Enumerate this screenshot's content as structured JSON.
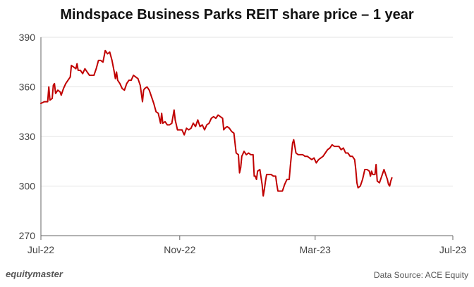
{
  "chart_data": {
    "type": "line",
    "title": "Mindspace Business Parks REIT share price – 1 year",
    "xlabel": "",
    "ylabel": "",
    "ylim": [
      270,
      390
    ],
    "yticks": [
      270,
      300,
      330,
      360,
      390
    ],
    "xlim": [
      0,
      365
    ],
    "xticks": [
      {
        "x": 0,
        "label": "Jul-22"
      },
      {
        "x": 123,
        "label": "Nov-22"
      },
      {
        "x": 243,
        "label": "Mar-23"
      },
      {
        "x": 365,
        "label": "Jul-23"
      }
    ],
    "grid": "horizontal",
    "series": [
      {
        "name": "Share price",
        "color": "#c00000",
        "points": [
          [
            0,
            350
          ],
          [
            3,
            351
          ],
          [
            6,
            351
          ],
          [
            7,
            360
          ],
          [
            8,
            352
          ],
          [
            10,
            353
          ],
          [
            11,
            361
          ],
          [
            12,
            362
          ],
          [
            13,
            356
          ],
          [
            15,
            358
          ],
          [
            17,
            357
          ],
          [
            18,
            355
          ],
          [
            20,
            359
          ],
          [
            22,
            362
          ],
          [
            24,
            364
          ],
          [
            26,
            366
          ],
          [
            27,
            373
          ],
          [
            29,
            372
          ],
          [
            31,
            371
          ],
          [
            32,
            374
          ],
          [
            33,
            370
          ],
          [
            35,
            370
          ],
          [
            37,
            368
          ],
          [
            39,
            371
          ],
          [
            41,
            369
          ],
          [
            43,
            367
          ],
          [
            45,
            367
          ],
          [
            47,
            367
          ],
          [
            49,
            371
          ],
          [
            51,
            376
          ],
          [
            53,
            376
          ],
          [
            55,
            375
          ],
          [
            57,
            382
          ],
          [
            59,
            380
          ],
          [
            61,
            381
          ],
          [
            63,
            376
          ],
          [
            65,
            369
          ],
          [
            66,
            365
          ],
          [
            67,
            369
          ],
          [
            68,
            364
          ],
          [
            70,
            362
          ],
          [
            72,
            359
          ],
          [
            74,
            358
          ],
          [
            76,
            362
          ],
          [
            78,
            364
          ],
          [
            80,
            364
          ],
          [
            82,
            367
          ],
          [
            84,
            366
          ],
          [
            86,
            365
          ],
          [
            88,
            361
          ],
          [
            90,
            351
          ],
          [
            91,
            358
          ],
          [
            92,
            359
          ],
          [
            94,
            360
          ],
          [
            96,
            358
          ],
          [
            98,
            354
          ],
          [
            100,
            350
          ],
          [
            102,
            345
          ],
          [
            104,
            344
          ],
          [
            106,
            338
          ],
          [
            107,
            344
          ],
          [
            108,
            338
          ],
          [
            110,
            339
          ],
          [
            112,
            337
          ],
          [
            114,
            337
          ],
          [
            116,
            338
          ],
          [
            118,
            346
          ],
          [
            119,
            340
          ],
          [
            120,
            337
          ],
          [
            121,
            334
          ],
          [
            123,
            334
          ],
          [
            125,
            334
          ],
          [
            127,
            331
          ],
          [
            129,
            335
          ],
          [
            131,
            334
          ],
          [
            133,
            335
          ],
          [
            135,
            338
          ],
          [
            137,
            336
          ],
          [
            139,
            340
          ],
          [
            141,
            336
          ],
          [
            143,
            337
          ],
          [
            145,
            334
          ],
          [
            147,
            337
          ],
          [
            149,
            338
          ],
          [
            151,
            341
          ],
          [
            153,
            342
          ],
          [
            155,
            341
          ],
          [
            157,
            343
          ],
          [
            159,
            342
          ],
          [
            161,
            341
          ],
          [
            162,
            334
          ],
          [
            163,
            335
          ],
          [
            165,
            336
          ],
          [
            167,
            335
          ],
          [
            169,
            333
          ],
          [
            171,
            332
          ],
          [
            172,
            326
          ],
          [
            173,
            320
          ],
          [
            175,
            319
          ],
          [
            176,
            308
          ],
          [
            177,
            311
          ],
          [
            178,
            318
          ],
          [
            180,
            321
          ],
          [
            182,
            319
          ],
          [
            184,
            320
          ],
          [
            186,
            319
          ],
          [
            188,
            319
          ],
          [
            189,
            306
          ],
          [
            190,
            306
          ],
          [
            191,
            304
          ],
          [
            192,
            309
          ],
          [
            194,
            310
          ],
          [
            196,
            301
          ],
          [
            197,
            294
          ],
          [
            198,
            298
          ],
          [
            199,
            303
          ],
          [
            200,
            307
          ],
          [
            202,
            307
          ],
          [
            204,
            307
          ],
          [
            206,
            306
          ],
          [
            208,
            306
          ],
          [
            209,
            301
          ],
          [
            210,
            297
          ],
          [
            212,
            297
          ],
          [
            214,
            297
          ],
          [
            216,
            301
          ],
          [
            218,
            304
          ],
          [
            220,
            304
          ],
          [
            221,
            312
          ],
          [
            223,
            326
          ],
          [
            224,
            328
          ],
          [
            226,
            320
          ],
          [
            228,
            319
          ],
          [
            230,
            319
          ],
          [
            232,
            319
          ],
          [
            234,
            318
          ],
          [
            236,
            318
          ],
          [
            238,
            317
          ],
          [
            240,
            316
          ],
          [
            242,
            317
          ],
          [
            244,
            314
          ],
          [
            246,
            316
          ],
          [
            248,
            317
          ],
          [
            250,
            318
          ],
          [
            252,
            320
          ],
          [
            254,
            322
          ],
          [
            256,
            323
          ],
          [
            258,
            325
          ],
          [
            260,
            324
          ],
          [
            262,
            324
          ],
          [
            264,
            324
          ],
          [
            266,
            322
          ],
          [
            268,
            323
          ],
          [
            270,
            320
          ],
          [
            272,
            320
          ],
          [
            274,
            318
          ],
          [
            276,
            318
          ],
          [
            278,
            316
          ],
          [
            279,
            310
          ],
          [
            280,
            302
          ],
          [
            281,
            299
          ],
          [
            283,
            300
          ],
          [
            285,
            304
          ],
          [
            287,
            310
          ],
          [
            289,
            310
          ],
          [
            291,
            309
          ],
          [
            292,
            306
          ],
          [
            293,
            309
          ],
          [
            294,
            307
          ],
          [
            296,
            307
          ],
          [
            297,
            313
          ],
          [
            298,
            303
          ],
          [
            300,
            302
          ],
          [
            302,
            306
          ],
          [
            304,
            310
          ],
          [
            306,
            306
          ],
          [
            307,
            304
          ],
          [
            308,
            301
          ],
          [
            309,
            300
          ],
          [
            310,
            303
          ],
          [
            311,
            305
          ]
        ]
      }
    ],
    "source": "Data Source: ACE Equity"
  },
  "brand": "equitymaster",
  "style": {
    "line_color": "#c00000",
    "grid_color": "#e3e3e3",
    "axis_color": "#666666"
  }
}
